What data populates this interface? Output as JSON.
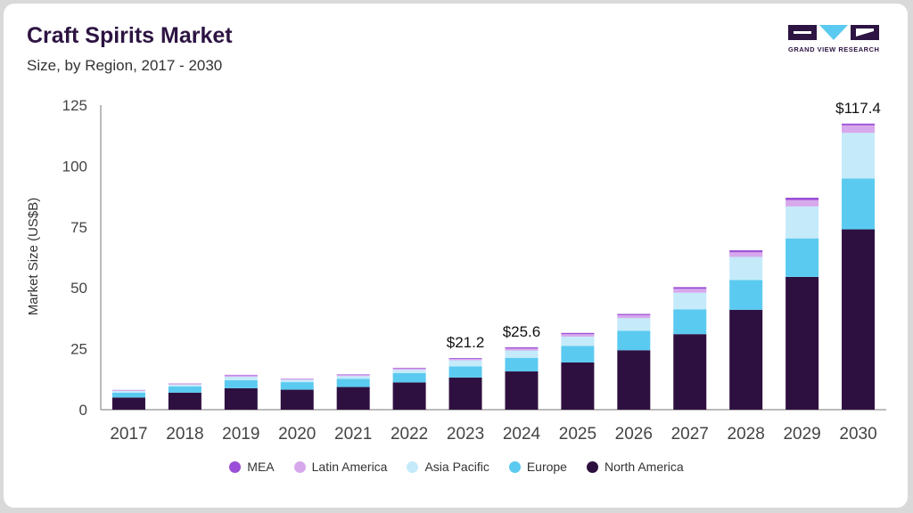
{
  "header": {
    "title": "Craft Spirits Market",
    "subtitle": "Size, by Region, 2017 - 2030",
    "logo_text": "GRAND VIEW RESEARCH"
  },
  "colors": {
    "MEA": "#9b4fd6",
    "Latin America": "#d7a8ec",
    "Asia Pacific": "#c5eafa",
    "Europe": "#5bcaf0",
    "North America": "#2e1040",
    "logo": "#2d1442",
    "logo_accent": "#5bcaf0"
  },
  "chart_data": {
    "type": "bar",
    "stacked": true,
    "title": "Craft Spirits Market",
    "subtitle": "Size, by Region, 2017 - 2030",
    "xlabel": "",
    "ylabel": "Market Size (US$B)",
    "ylim": [
      0,
      125
    ],
    "yticks": [
      0,
      25,
      50,
      75,
      100,
      125
    ],
    "grid": false,
    "legend_position": "bottom",
    "categories": [
      "2017",
      "2018",
      "2019",
      "2020",
      "2021",
      "2022",
      "2023",
      "2024",
      "2025",
      "2026",
      "2027",
      "2028",
      "2029",
      "2030"
    ],
    "series": [
      {
        "name": "North America",
        "values": [
          5.0,
          7.0,
          8.8,
          8.2,
          9.3,
          11.2,
          13.2,
          15.7,
          19.4,
          24.4,
          31.0,
          41.0,
          54.5,
          74.0
        ]
      },
      {
        "name": "Europe",
        "values": [
          2.0,
          2.5,
          3.3,
          3.1,
          3.4,
          3.8,
          4.6,
          5.6,
          6.8,
          8.0,
          10.2,
          12.2,
          15.8,
          20.9
        ]
      },
      {
        "name": "Asia Pacific",
        "values": [
          0.7,
          0.8,
          1.4,
          1.0,
          1.1,
          1.4,
          2.5,
          3.0,
          3.8,
          5.2,
          6.8,
          9.5,
          13.1,
          18.7
        ]
      },
      {
        "name": "Latin America",
        "values": [
          0.3,
          0.4,
          0.6,
          0.4,
          0.5,
          0.6,
          0.6,
          0.8,
          1.0,
          1.2,
          1.6,
          1.9,
          2.6,
          3.1
        ]
      },
      {
        "name": "MEA",
        "values": [
          0.1,
          0.1,
          0.2,
          0.1,
          0.2,
          0.2,
          0.3,
          0.5,
          0.5,
          0.5,
          0.7,
          0.8,
          1.0,
          0.7
        ]
      }
    ],
    "annotations": [
      {
        "category": "2023",
        "text": "$21.2"
      },
      {
        "category": "2024",
        "text": "$25.6"
      },
      {
        "category": "2030",
        "text": "$117.4"
      }
    ]
  }
}
